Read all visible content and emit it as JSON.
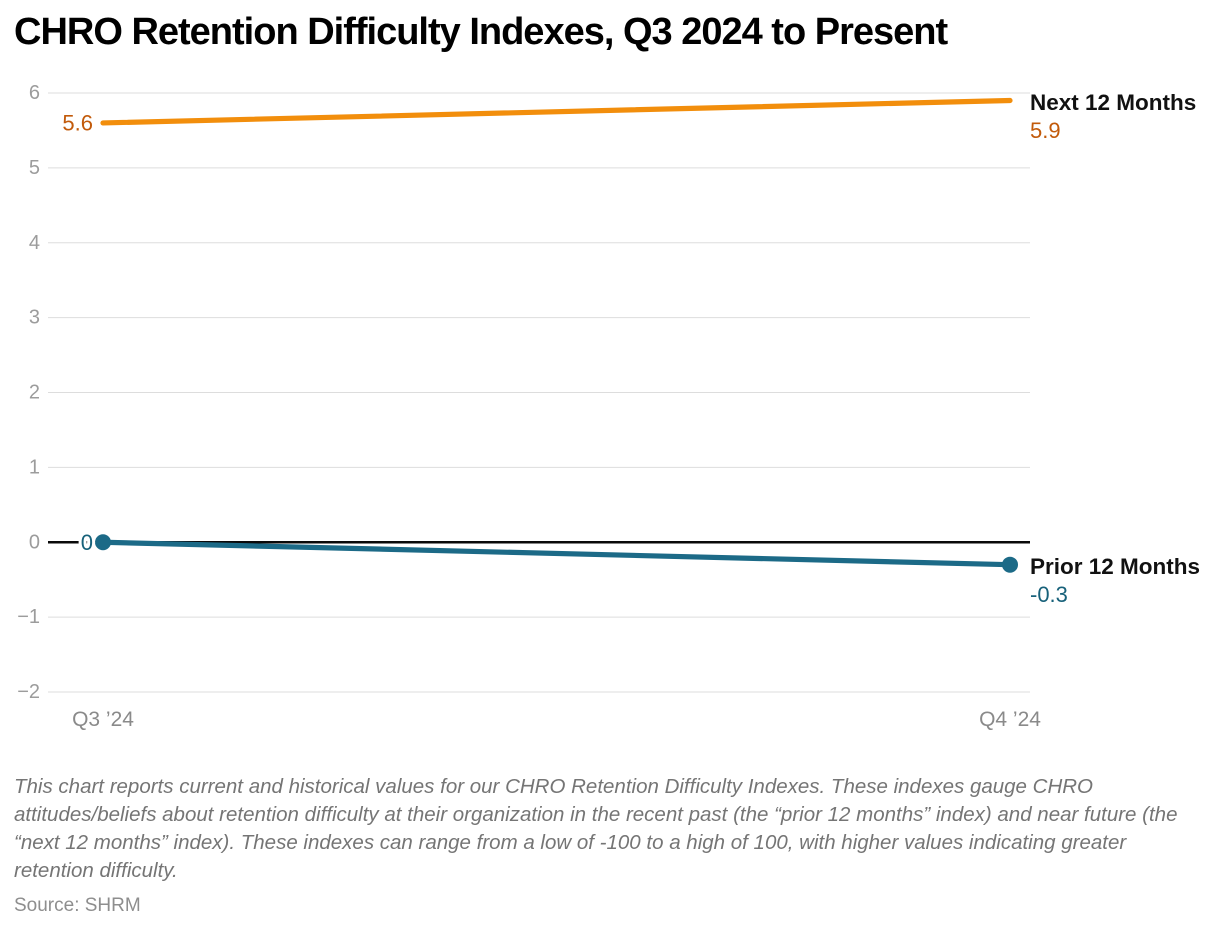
{
  "chart_data": {
    "type": "line",
    "title": "CHRO Retention Difficulty Indexes, Q3 2024 to Present",
    "x_categories": [
      "Q3 ’24",
      "Q4 ’24"
    ],
    "series": [
      {
        "name": "Next 12 Months",
        "values": [
          5.6,
          5.9
        ],
        "value_labels": [
          "5.6",
          "5.9"
        ],
        "color": "#F28E0C",
        "label_color": "#C25A0A",
        "point_markers": false
      },
      {
        "name": "Prior 12 Months",
        "values": [
          0,
          -0.3
        ],
        "value_labels": [
          "0",
          "-0.3"
        ],
        "color": "#1C6A87",
        "label_color": "#17617A",
        "point_markers": true
      }
    ],
    "ylim": [
      -2,
      6
    ],
    "yticks": [
      6,
      5,
      4,
      3,
      2,
      1,
      0,
      -1,
      -2
    ],
    "grid": true,
    "zero_baseline": true,
    "legend_position": "line-end-labels-right"
  },
  "footnote": "This chart reports current and historical values for our CHRO Retention Difficulty Indexes. These indexes gauge CHRO attitudes/beliefs about retention difficulty at their organization in the recent past (the “prior 12 months” index) and near future (the “next 12 months” index). These indexes can range from a low of -100 to a high of 100, with higher values indicating greater retention difficulty.",
  "source": "Source: SHRM",
  "theme": {
    "background": "#FFFFFF",
    "title_color": "#000000",
    "grid_color": "#DDDDDD",
    "zero_line_color": "#0A0A0A",
    "y_tick_label_color": "#9C9C9C",
    "x_tick_label_color": "#8A8A8A",
    "series_name_color": "#111111",
    "footnote_color": "#757575",
    "source_color": "#8E8E8E"
  }
}
